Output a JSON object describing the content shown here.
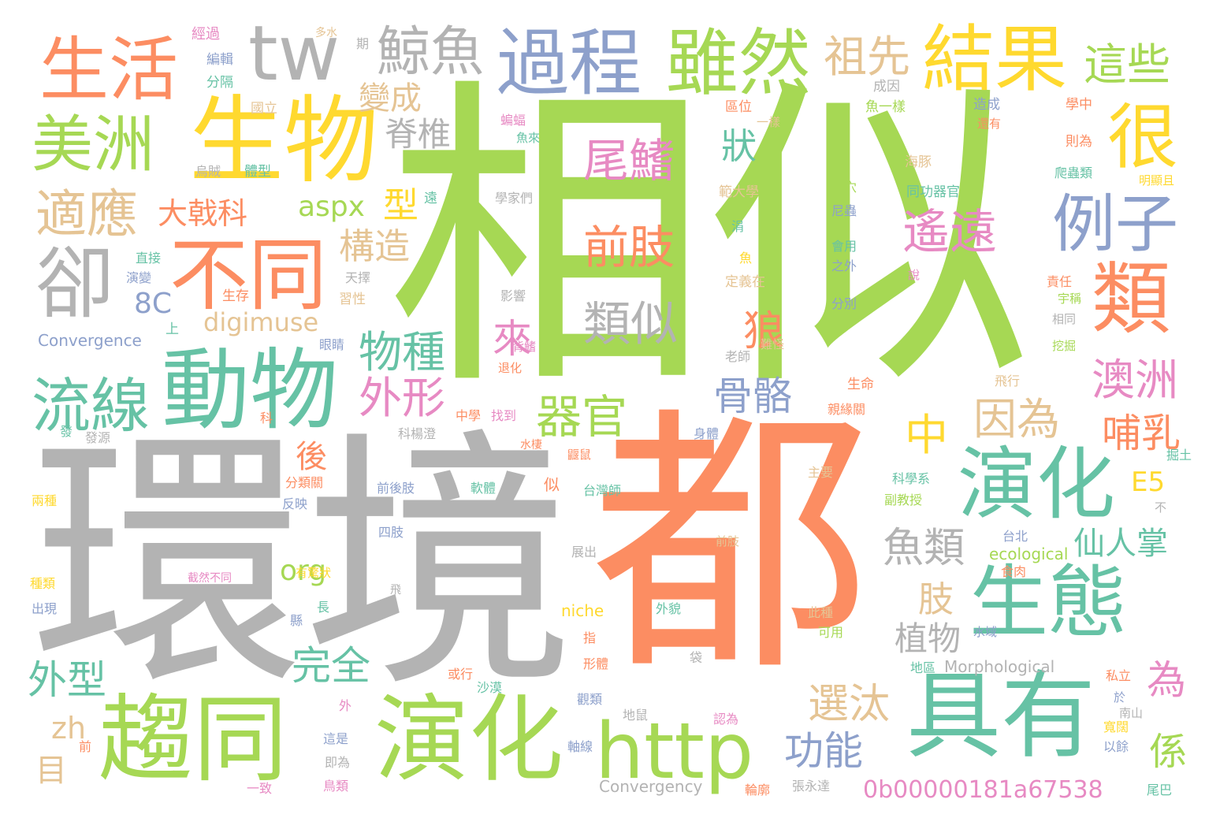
{
  "words": [
    {
      "text": "相似",
      "color": "#a6d854",
      "vertical": false
    },
    {
      "text": "環境",
      "color": "#b3b3b3",
      "vertical": false
    },
    {
      "text": "都",
      "color": "#fc8d62",
      "vertical": false
    },
    {
      "text": "趨同",
      "color": "#a6d854",
      "vertical": false
    },
    {
      "text": "演化",
      "color": "#a6d854",
      "vertical": false
    },
    {
      "text": "具有",
      "color": "#66c2a5",
      "vertical": false
    },
    {
      "text": "生物",
      "color": "#ffd92f",
      "vertical": false
    },
    {
      "text": "動物",
      "color": "#66c2a5",
      "vertical": false
    },
    {
      "text": "http",
      "color": "#a6d854",
      "vertical": false
    },
    {
      "text": "演化",
      "color": "#66c2a5",
      "vertical": false
    },
    {
      "text": "生態",
      "color": "#66c2a5",
      "vertical": false
    },
    {
      "text": "過程",
      "color": "#8da0cb",
      "vertical": false
    },
    {
      "text": "雖然",
      "color": "#a6d854",
      "vertical": false
    },
    {
      "text": "結果",
      "color": "#ffd92f",
      "vertical": false
    },
    {
      "text": "不同",
      "color": "#fc8d62",
      "vertical": false
    },
    {
      "text": "生活",
      "color": "#fc8d62",
      "vertical": false
    },
    {
      "text": "tw",
      "color": "#b3b3b3",
      "vertical": false
    },
    {
      "text": "美洲",
      "color": "#a6d854",
      "vertical": false
    },
    {
      "text": "鯨魚",
      "color": "#b3b3b3",
      "vertical": false
    },
    {
      "text": "流線",
      "color": "#66c2a5",
      "vertical": false
    },
    {
      "text": "類",
      "color": "#fc8d62",
      "vertical": false
    },
    {
      "text": "例子",
      "color": "#8da0cb",
      "vertical": false
    },
    {
      "text": "卻",
      "color": "#b3b3b3",
      "vertical": false
    },
    {
      "text": "很",
      "color": "#ffd92f",
      "vertical": false
    },
    {
      "text": "適應",
      "color": "#e5c494",
      "vertical": false
    },
    {
      "text": "祖先",
      "color": "#e5c494",
      "vertical": false
    },
    {
      "text": "這些",
      "color": "#a6d854",
      "vertical": false
    },
    {
      "text": "尾鰭",
      "color": "#e78ac3",
      "vertical": false
    },
    {
      "text": "前肢",
      "color": "#fc8d62",
      "vertical": false
    },
    {
      "text": "類似",
      "color": "#b3b3b3",
      "vertical": false
    },
    {
      "text": "遙遠",
      "color": "#e78ac3",
      "vertical": false
    },
    {
      "text": "澳洲",
      "color": "#e78ac3",
      "vertical": false
    },
    {
      "text": "因為",
      "color": "#e5c494",
      "vertical": false
    },
    {
      "text": "器官",
      "color": "#a6d854",
      "vertical": false
    },
    {
      "text": "物種",
      "color": "#66c2a5",
      "vertical": false
    },
    {
      "text": "外形",
      "color": "#e78ac3",
      "vertical": false
    },
    {
      "text": "骨骼",
      "color": "#8da0cb",
      "vertical": false
    },
    {
      "text": "魚類",
      "color": "#b3b3b3",
      "vertical": false
    },
    {
      "text": "外型",
      "color": "#66c2a5",
      "vertical": false
    },
    {
      "text": "選汰",
      "color": "#e5c494",
      "vertical": false
    },
    {
      "text": "功能",
      "color": "#8da0cb",
      "vertical": false
    },
    {
      "text": "變成",
      "color": "#e5c494",
      "vertical": false
    },
    {
      "text": "脊椎",
      "color": "#b3b3b3",
      "vertical": false
    },
    {
      "text": "狀",
      "color": "#66c2a5",
      "vertical": false
    },
    {
      "text": "狼",
      "color": "#fc8d62",
      "vertical": false
    },
    {
      "text": "中",
      "color": "#ffd92f",
      "vertical": false
    },
    {
      "text": "哺乳",
      "color": "#fc8d62",
      "vertical": false
    },
    {
      "text": "構造",
      "color": "#e5c494",
      "vertical": false
    },
    {
      "text": "大戟科",
      "color": "#fc8d62",
      "vertical": false
    },
    {
      "text": "仙人掌",
      "color": "#66c2a5",
      "vertical": false
    },
    {
      "text": "植物",
      "color": "#b3b3b3",
      "vertical": false
    },
    {
      "text": "完全",
      "color": "#66c2a5",
      "vertical": false
    },
    {
      "text": "為",
      "color": "#e78ac3",
      "vertical": false
    },
    {
      "text": "係",
      "color": "#a6d854",
      "vertical": false
    },
    {
      "text": "來",
      "color": "#e78ac3",
      "vertical": false
    },
    {
      "text": "肢",
      "color": "#e5c494",
      "vertical": false
    },
    {
      "text": "後",
      "color": "#fc8d62",
      "vertical": false
    },
    {
      "text": "型",
      "color": "#ffd92f",
      "vertical": false
    },
    {
      "text": "aspx",
      "color": "#a6d854",
      "vertical": false
    },
    {
      "text": "8C",
      "color": "#8da0cb",
      "vertical": false
    },
    {
      "text": "digimuse",
      "color": "#e5c494",
      "vertical": false
    },
    {
      "text": "org",
      "color": "#a6d854",
      "vertical": false
    },
    {
      "text": "E5",
      "color": "#ffd92f",
      "vertical": false
    },
    {
      "text": "zh",
      "color": "#e5c494",
      "vertical": false
    },
    {
      "text": "目",
      "color": "#e5c494",
      "vertical": false
    },
    {
      "text": "0b00000181a67538",
      "color": "#e78ac3",
      "vertical": false
    },
    {
      "text": "Convergence",
      "color": "#8da0cb",
      "vertical": false
    },
    {
      "text": "Convergency",
      "color": "#b3b3b3",
      "vertical": false
    },
    {
      "text": "Morphological",
      "color": "#b3b3b3",
      "vertical": false
    },
    {
      "text": "ecological",
      "color": "#a6d854",
      "vertical": false
    },
    {
      "text": "niche",
      "color": "#ffd92f",
      "vertical": false
    },
    {
      "text": "經過",
      "color": "#e78ac3",
      "vertical": false
    },
    {
      "text": "編輯",
      "color": "#8da0cb",
      "vertical": false
    },
    {
      "text": "分隔",
      "color": "#66c2a5",
      "vertical": false
    },
    {
      "text": "國立",
      "color": "#e5c494",
      "vertical": false
    },
    {
      "text": "多水",
      "color": "#e5c494",
      "vertical": false
    },
    {
      "text": "期",
      "color": "#b3b3b3",
      "vertical": false
    },
    {
      "text": "成因",
      "color": "#b3b3b3",
      "vertical": false
    },
    {
      "text": "區位",
      "color": "#fc8d62",
      "vertical": false
    },
    {
      "text": "一樣",
      "color": "#e5c494",
      "vertical": false
    },
    {
      "text": "魚一樣",
      "color": "#a6d854",
      "vertical": false
    },
    {
      "text": "造成",
      "color": "#8da0cb",
      "vertical": false
    },
    {
      "text": "學中",
      "color": "#fc8d62",
      "vertical": false
    },
    {
      "text": "還有",
      "color": "#fc8d62",
      "vertical": false
    },
    {
      "text": "蝙蝠",
      "color": "#e78ac3",
      "vertical": false
    },
    {
      "text": "魚來",
      "color": "#66c2a5",
      "vertical": false
    },
    {
      "text": "則為",
      "color": "#fc8d62",
      "vertical": false
    },
    {
      "text": "海豚",
      "color": "#e5c494",
      "vertical": false
    },
    {
      "text": "爬蟲類",
      "color": "#66c2a5",
      "vertical": false
    },
    {
      "text": "明顯且",
      "color": "#ffd92f",
      "vertical": false
    },
    {
      "text": "體型",
      "color": "#66c2a5",
      "vertical": false
    },
    {
      "text": "烏賊",
      "color": "#b3b3b3",
      "vertical": false
    },
    {
      "text": "遠",
      "color": "#66c2a5",
      "vertical": false
    },
    {
      "text": "學家們",
      "color": "#b3b3b3",
      "vertical": false
    },
    {
      "text": "範大學",
      "color": "#e5c494",
      "vertical": false
    },
    {
      "text": "土穴",
      "color": "#a6d854",
      "vertical": false
    },
    {
      "text": "同功器官",
      "color": "#66c2a5",
      "vertical": false
    },
    {
      "text": "尼蟲",
      "color": "#8da0cb",
      "vertical": false
    },
    {
      "text": "涓",
      "color": "#66c2a5",
      "vertical": false
    },
    {
      "text": "魚",
      "color": "#ffd92f",
      "vertical": false
    },
    {
      "text": "會用",
      "color": "#66c2a5",
      "vertical": false
    },
    {
      "text": "之外",
      "color": "#8da0cb",
      "vertical": false
    },
    {
      "text": "直接",
      "color": "#66c2a5",
      "vertical": false
    },
    {
      "text": "演變",
      "color": "#8da0cb",
      "vertical": false
    },
    {
      "text": "天擇",
      "color": "#b3b3b3",
      "vertical": false
    },
    {
      "text": "生存",
      "color": "#fc8d62",
      "vertical": false
    },
    {
      "text": "習性",
      "color": "#e5c494",
      "vertical": false
    },
    {
      "text": "影響",
      "color": "#b3b3b3",
      "vertical": false
    },
    {
      "text": "定義在",
      "color": "#e5c494",
      "vertical": false
    },
    {
      "text": "說",
      "color": "#e78ac3",
      "vertical": false
    },
    {
      "text": "責任",
      "color": "#fc8d62",
      "vertical": false
    },
    {
      "text": "宇稱",
      "color": "#a6d854",
      "vertical": false
    },
    {
      "text": "相同",
      "color": "#b3b3b3",
      "vertical": false
    },
    {
      "text": "分別",
      "color": "#8da0cb",
      "vertical": false
    },
    {
      "text": "上",
      "color": "#66c2a5",
      "vertical": false
    },
    {
      "text": "眼睛",
      "color": "#8da0cb",
      "vertical": false
    },
    {
      "text": "老師",
      "color": "#b3b3b3",
      "vertical": false
    },
    {
      "text": "難怪",
      "color": "#e5c494",
      "vertical": false
    },
    {
      "text": "挖掘",
      "color": "#a6d854",
      "vertical": false
    },
    {
      "text": "背鰭",
      "color": "#e78ac3",
      "vertical": false
    },
    {
      "text": "退化",
      "color": "#fc8d62",
      "vertical": false
    },
    {
      "text": "生命",
      "color": "#fc8d62",
      "vertical": false
    },
    {
      "text": "飛行",
      "color": "#e5c494",
      "vertical": false
    },
    {
      "text": "中學",
      "color": "#fc8d62",
      "vertical": false
    },
    {
      "text": "找到",
      "color": "#e78ac3",
      "vertical": false
    },
    {
      "text": "親緣關",
      "color": "#fc8d62",
      "vertical": false
    },
    {
      "text": "科",
      "color": "#fc8d62",
      "vertical": false
    },
    {
      "text": "科楊澄",
      "color": "#b3b3b3",
      "vertical": false
    },
    {
      "text": "身體",
      "color": "#8da0cb",
      "vertical": false
    },
    {
      "text": "發",
      "color": "#66c2a5",
      "vertical": false
    },
    {
      "text": "發源",
      "color": "#b3b3b3",
      "vertical": false
    },
    {
      "text": "水棲",
      "color": "#fc8d62",
      "vertical": false
    },
    {
      "text": "鼴鼠",
      "color": "#fc8d62",
      "vertical": false
    },
    {
      "text": "掘土",
      "color": "#66c2a5",
      "vertical": false
    },
    {
      "text": "分類關",
      "color": "#fc8d62",
      "vertical": false
    },
    {
      "text": "前後肢",
      "color": "#8da0cb",
      "vertical": false
    },
    {
      "text": "軟體",
      "color": "#66c2a5",
      "vertical": false
    },
    {
      "text": "似",
      "color": "#fc8d62",
      "vertical": false
    },
    {
      "text": "台灣師",
      "color": "#66c2a5",
      "vertical": false
    },
    {
      "text": "主要",
      "color": "#e5c494",
      "vertical": false
    },
    {
      "text": "科學系",
      "color": "#66c2a5",
      "vertical": false
    },
    {
      "text": "副教授",
      "color": "#a6d854",
      "vertical": false
    },
    {
      "text": "不",
      "color": "#b3b3b3",
      "vertical": false
    },
    {
      "text": "兩種",
      "color": "#ffd92f",
      "vertical": false
    },
    {
      "text": "反映",
      "color": "#8da0cb",
      "vertical": false
    },
    {
      "text": "四肢",
      "color": "#8da0cb",
      "vertical": false
    },
    {
      "text": "台北",
      "color": "#8da0cb",
      "vertical": false
    },
    {
      "text": "展出",
      "color": "#b3b3b3",
      "vertical": false
    },
    {
      "text": "前肢",
      "color": "#e5c494",
      "vertical": false
    },
    {
      "text": "食肉",
      "color": "#fc8d62",
      "vertical": false
    },
    {
      "text": "有驚狀",
      "color": "#ffd92f",
      "vertical": false
    },
    {
      "text": "種類",
      "color": "#ffd92f",
      "vertical": false
    },
    {
      "text": "出現",
      "color": "#8da0cb",
      "vertical": false
    },
    {
      "text": "截然不同",
      "color": "#e78ac3",
      "vertical": false
    },
    {
      "text": "長",
      "color": "#66c2a5",
      "vertical": false
    },
    {
      "text": "飛",
      "color": "#b3b3b3",
      "vertical": false
    },
    {
      "text": "外貌",
      "color": "#66c2a5",
      "vertical": false
    },
    {
      "text": "此種",
      "color": "#e5c494",
      "vertical": false
    },
    {
      "text": "可用",
      "color": "#a6d854",
      "vertical": false
    },
    {
      "text": "水域",
      "color": "#8da0cb",
      "vertical": false
    },
    {
      "text": "縣",
      "color": "#8da0cb",
      "vertical": false
    },
    {
      "text": "指",
      "color": "#fc8d62",
      "vertical": false
    },
    {
      "text": "形體",
      "color": "#fc8d62",
      "vertical": false
    },
    {
      "text": "袋",
      "color": "#b3b3b3",
      "vertical": false
    },
    {
      "text": "地區",
      "color": "#66c2a5",
      "vertical": false
    },
    {
      "text": "私立",
      "color": "#fc8d62",
      "vertical": false
    },
    {
      "text": "或行",
      "color": "#fc8d62",
      "vertical": false
    },
    {
      "text": "沙漠",
      "color": "#66c2a5",
      "vertical": false
    },
    {
      "text": "觀類",
      "color": "#8da0cb",
      "vertical": false
    },
    {
      "text": "外",
      "color": "#e78ac3",
      "vertical": false
    },
    {
      "text": "地鼠",
      "color": "#b3b3b3",
      "vertical": false
    },
    {
      "text": "認為",
      "color": "#e78ac3",
      "vertical": false
    },
    {
      "text": "於",
      "color": "#8da0cb",
      "vertical": false
    },
    {
      "text": "寬闊",
      "color": "#ffd92f",
      "vertical": false
    },
    {
      "text": "南山",
      "color": "#b3b3b3",
      "vertical": false
    },
    {
      "text": "以餘",
      "color": "#8da0cb",
      "vertical": false
    },
    {
      "text": "這是",
      "color": "#8da0cb",
      "vertical": false
    },
    {
      "text": "前",
      "color": "#fc8d62",
      "vertical": false
    },
    {
      "text": "軸線",
      "color": "#8da0cb",
      "vertical": false
    },
    {
      "text": "即為",
      "color": "#b3b3b3",
      "vertical": false
    },
    {
      "text": "一致",
      "color": "#e78ac3",
      "vertical": false
    },
    {
      "text": "鳥類",
      "color": "#e78ac3",
      "vertical": false
    },
    {
      "text": "輪廓",
      "color": "#fc8d62",
      "vertical": false
    },
    {
      "text": "張永達",
      "color": "#b3b3b3",
      "vertical": false
    },
    {
      "text": "尾巴",
      "color": "#66c2a5",
      "vertical": false
    }
  ]
}
